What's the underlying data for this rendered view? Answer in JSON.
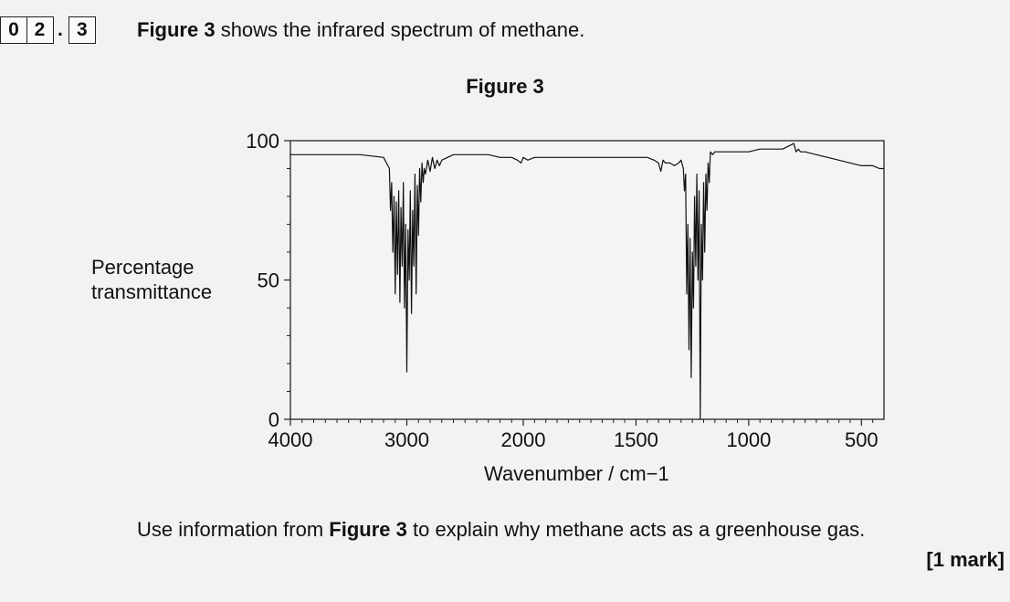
{
  "question": {
    "number_digits": [
      "0",
      "2",
      "3"
    ],
    "intro_bold": "Figure 3",
    "intro_rest": " shows the infrared spectrum of methane.",
    "prompt_pre": "Use information from ",
    "prompt_bold": "Figure 3",
    "prompt_post": " to explain why methane acts as a greenhouse gas.",
    "marks": "[1 mark]"
  },
  "chart_data": {
    "type": "line",
    "title": "Figure 3",
    "xlabel": "Wavenumber / cm−1",
    "ylabel_lines": [
      "Percentage",
      "transmittance"
    ],
    "xlim": [
      4000,
      400
    ],
    "ylim": [
      0,
      100
    ],
    "x_ticks": [
      4000,
      3000,
      2000,
      1500,
      1000,
      500
    ],
    "y_ticks": [
      0,
      50,
      100
    ],
    "x_axis_note": "non-linear scale: 4000-2000 compressed, 2000-400 expanded",
    "line_color": "#111111",
    "grid": false,
    "series": [
      {
        "x": [
          4000,
          3800,
          3600,
          3400,
          3200,
          3150,
          3140,
          3130,
          3120,
          3110,
          3100,
          3090,
          3080,
          3070,
          3060,
          3050,
          3040,
          3030,
          3020,
          3010,
          3000,
          2990,
          2980,
          2970,
          2960,
          2950,
          2940,
          2930,
          2920,
          2910,
          2900,
          2890,
          2880,
          2870,
          2860,
          2850,
          2840,
          2820,
          2800,
          2780,
          2760,
          2740,
          2720,
          2700,
          2650,
          2600,
          2500,
          2400,
          2300,
          2200,
          2100,
          2050,
          2020,
          2000,
          1980,
          1950,
          1900,
          1800,
          1700,
          1600,
          1500,
          1450,
          1420,
          1400,
          1390,
          1380,
          1370,
          1350,
          1330,
          1310,
          1300,
          1290,
          1285,
          1280,
          1275,
          1270,
          1265,
          1260,
          1255,
          1250,
          1245,
          1240,
          1235,
          1230,
          1225,
          1220,
          1215,
          1210,
          1205,
          1200,
          1195,
          1190,
          1185,
          1180,
          1175,
          1170,
          1160,
          1150,
          1100,
          1050,
          1000,
          950,
          900,
          850,
          800,
          790,
          780,
          770,
          750,
          700,
          650,
          600,
          550,
          500,
          450,
          420,
          400
        ],
        "y": [
          95,
          95,
          95,
          95,
          94,
          90,
          75,
          85,
          60,
          80,
          45,
          78,
          52,
          82,
          42,
          76,
          55,
          85,
          40,
          70,
          17,
          68,
          50,
          82,
          38,
          75,
          55,
          88,
          45,
          84,
          66,
          90,
          78,
          92,
          85,
          90,
          88,
          93,
          89,
          94,
          90,
          93,
          91,
          93,
          94,
          95,
          95,
          95,
          95,
          94,
          94,
          93,
          92,
          94,
          93,
          94,
          94,
          94,
          94,
          94,
          94,
          94,
          93,
          92,
          89,
          93,
          92,
          92,
          91,
          92,
          93,
          90,
          82,
          88,
          45,
          70,
          25,
          65,
          15,
          60,
          40,
          80,
          55,
          88,
          50,
          82,
          0,
          70,
          50,
          85,
          60,
          88,
          75,
          92,
          85,
          96,
          95,
          96,
          96,
          96,
          96,
          97,
          97,
          97,
          99,
          96,
          97,
          96,
          96,
          95,
          94,
          93,
          92,
          91,
          91,
          90,
          90
        ]
      }
    ]
  }
}
